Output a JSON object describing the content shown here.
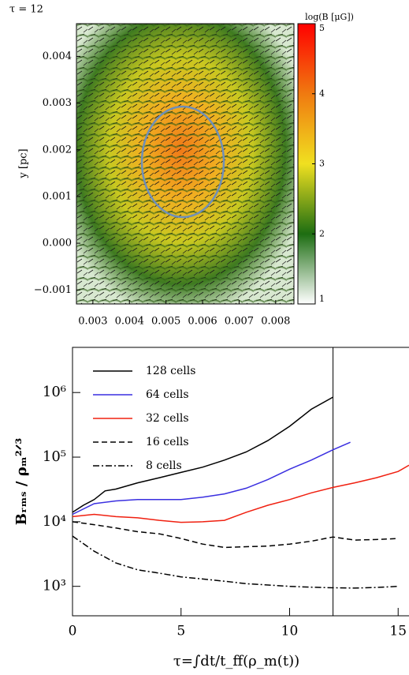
{
  "chart_data": [
    {
      "type": "image",
      "annotation": "τ = 12",
      "ylabel": "y [pc]",
      "xlim": [
        0.00255,
        0.0085
      ],
      "ylim": [
        -0.0013,
        0.0047
      ],
      "xticks": [
        0.003,
        0.004,
        0.005,
        0.006,
        0.007,
        0.008
      ],
      "yticks": [
        {
          "value": -0.001,
          "label": "−0.001"
        },
        {
          "value": 0,
          "label": "0.000"
        },
        0.001,
        0.002,
        0.003,
        0.004
      ],
      "colorbar": {
        "label": "log(B [μG])",
        "lim": [
          1,
          5
        ],
        "ticks": [
          1,
          2,
          3,
          4,
          5
        ]
      }
    },
    {
      "type": "line",
      "ylabel": "Bᵣₘₛ / ρₘ²ᐟ³",
      "xlabel": "τ=∫dt/t_ff(ρ_m(t))",
      "xlim": [
        0,
        15.5
      ],
      "ylim": [
        350,
        5000000
      ],
      "log_y": true,
      "xticks": [
        0,
        5,
        10,
        15
      ],
      "yticks": [
        {
          "value": 1000,
          "label": "10³"
        },
        {
          "value": 10000,
          "label": "10⁴"
        },
        {
          "value": 100000,
          "label": "10⁵"
        },
        {
          "value": 1000000,
          "label": "10⁶"
        }
      ],
      "vline": 12,
      "legend": "upper left",
      "series": [
        {
          "name": "128 cells",
          "color": "#000000",
          "dash": "solid",
          "x": [
            0,
            0.5,
            1,
            1.5,
            2,
            3,
            4,
            5,
            6,
            7,
            8,
            9,
            10,
            11,
            12
          ],
          "values": [
            14000,
            18000,
            22000,
            30000,
            32000,
            40000,
            48000,
            58000,
            70000,
            90000,
            120000,
            180000,
            300000,
            550000,
            850000
          ]
        },
        {
          "name": "64 cells",
          "color": "#3a2fe0",
          "dash": "solid",
          "x": [
            0,
            1,
            2,
            3,
            4,
            5,
            6,
            7,
            8,
            9,
            10,
            11,
            12,
            12.8
          ],
          "values": [
            13000,
            19000,
            21000,
            22000,
            22000,
            22000,
            24000,
            27000,
            33000,
            45000,
            65000,
            90000,
            130000,
            170000
          ]
        },
        {
          "name": "32 cells",
          "color": "#f02010",
          "dash": "solid",
          "x": [
            0,
            1,
            2,
            3,
            4,
            5,
            6,
            7,
            8,
            9,
            10,
            11,
            12,
            13,
            14,
            15,
            15.5
          ],
          "values": [
            12000,
            13000,
            12000,
            11500,
            10500,
            9800,
            10000,
            10500,
            14000,
            18000,
            22000,
            28000,
            34000,
            40000,
            48000,
            60000,
            75000
          ]
        },
        {
          "name": "16 cells",
          "color": "#000000",
          "dash": "dashed",
          "x": [
            0,
            1,
            2,
            3,
            4,
            5,
            6,
            7,
            8,
            9,
            10,
            11,
            12,
            13,
            14,
            15
          ],
          "values": [
            10000,
            9000,
            8000,
            7000,
            6500,
            5500,
            4500,
            4000,
            4100,
            4200,
            4500,
            5000,
            5800,
            5200,
            5300,
            5500
          ]
        },
        {
          "name": "8 cells",
          "color": "#000000",
          "dash": "dashdot",
          "x": [
            0,
            1,
            2,
            3,
            4,
            5,
            6,
            7,
            8,
            9,
            10,
            11,
            12,
            13,
            14,
            15
          ],
          "values": [
            6000,
            3500,
            2300,
            1800,
            1600,
            1400,
            1300,
            1200,
            1100,
            1050,
            1000,
            970,
            950,
            940,
            960,
            1000
          ]
        }
      ]
    }
  ]
}
